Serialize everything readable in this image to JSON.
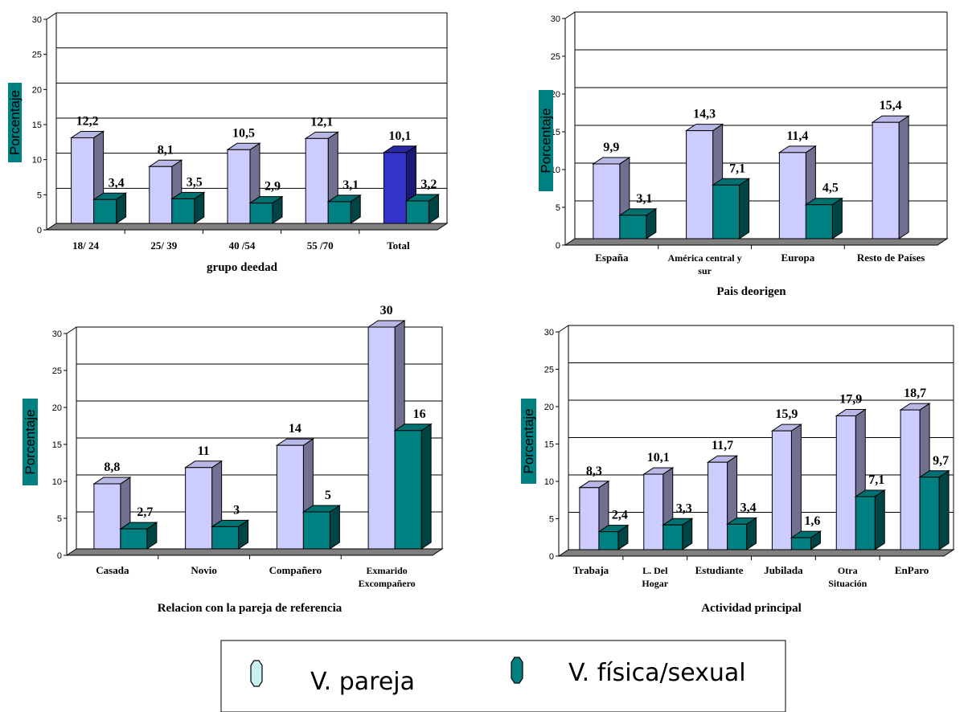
{
  "y_axis_label": "Porcentaje",
  "y_ticks": [
    "0",
    "5",
    "10",
    "15",
    "20",
    "25",
    "30"
  ],
  "colors": {
    "pareja_front": "#ccccff",
    "pareja_top": "#b8b8e6",
    "pareja_side": "#707090",
    "fisica_front": "#008080",
    "fisica_top": "#007070",
    "fisica_side": "#004545",
    "total_front": "#3333cc",
    "total_top": "#2929a8",
    "total_side": "#1a1a75",
    "ylabel_bg": "#008080"
  },
  "legend": {
    "items": [
      {
        "label": "V. pareja",
        "icon": "pale-blue-octagon-icon"
      },
      {
        "label": "V. física/sexual",
        "icon": "teal-octagon-icon"
      }
    ]
  },
  "chart_data": [
    {
      "type": "bar",
      "categories": [
        "18/ 24",
        "25/ 39",
        "40 /54",
        "55 /70",
        "Total"
      ],
      "xlabel": "grupo deedad",
      "ylabel": "Porcentaje",
      "ylim": [
        0,
        30
      ],
      "series": [
        {
          "name": "V. pareja",
          "values": [
            12.2,
            8.1,
            10.5,
            12.1,
            10.1
          ],
          "labels": [
            "12,2",
            "8,1",
            "10,5",
            "12,1",
            "10,1"
          ]
        },
        {
          "name": "V. física/sexual",
          "values": [
            3.4,
            3.5,
            2.9,
            3.1,
            3.2
          ],
          "labels": [
            "3,4",
            "3,5",
            "2,9",
            "3,1",
            "3,2"
          ]
        }
      ]
    },
    {
      "type": "bar",
      "categories": [
        "España",
        "América central y sur",
        "Europa",
        "Resto de Países"
      ],
      "xlabel": "Pais deorigen",
      "ylabel": "Porcentaje",
      "ylim": [
        0,
        30
      ],
      "series": [
        {
          "name": "V. pareja",
          "values": [
            9.9,
            14.3,
            11.4,
            15.4
          ],
          "labels": [
            "9,9",
            "14,3",
            "11,4",
            "15,4"
          ]
        },
        {
          "name": "V. física/sexual",
          "values": [
            3.1,
            7.1,
            4.5,
            null
          ],
          "labels": [
            "3,1",
            "7,1",
            "4,5",
            ""
          ]
        }
      ]
    },
    {
      "type": "bar",
      "categories": [
        "Casada",
        "Novio",
        "Compañero",
        "Exmarido Excompañero"
      ],
      "xlabel": "Relacion con la pareja de referencia",
      "ylabel": "Porcentaje",
      "ylim": [
        0,
        30
      ],
      "series": [
        {
          "name": "V. pareja",
          "values": [
            8.8,
            11,
            14,
            30
          ],
          "labels": [
            "8,8",
            "11",
            "14",
            "30"
          ]
        },
        {
          "name": "V. física/sexual",
          "values": [
            2.7,
            3,
            5,
            16
          ],
          "labels": [
            "2,7",
            "3",
            "5",
            "16"
          ]
        }
      ]
    },
    {
      "type": "bar",
      "categories": [
        "Trabaja",
        "L. Del Hogar",
        "Estudiante",
        "Jubilada",
        "Otra Situación",
        "EnParo"
      ],
      "xlabel": "Actividad principal",
      "ylabel": "Porcentaje",
      "ylim": [
        0,
        30
      ],
      "series": [
        {
          "name": "V. pareja",
          "values": [
            8.3,
            10.1,
            11.7,
            15.9,
            17.9,
            18.7
          ],
          "labels": [
            "8,3",
            "10,1",
            "11,7",
            "15,9",
            "17,9",
            "18,7"
          ]
        },
        {
          "name": "V. física/sexual",
          "values": [
            2.4,
            3.3,
            3.4,
            1.6,
            7.1,
            9.7
          ],
          "labels": [
            "2,4",
            "3,3",
            "3,4",
            "1,6",
            "7,1",
            "9,7"
          ]
        }
      ]
    }
  ]
}
